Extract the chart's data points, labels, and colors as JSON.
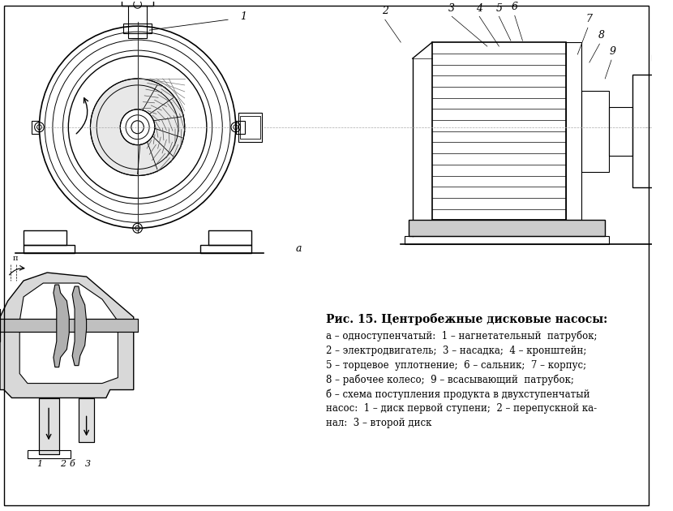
{
  "title": "Рис. 15. Центробежные дисковые насосы:",
  "background_color": "#ffffff",
  "line_color": "#000000",
  "label_a": "а",
  "label_b": "б",
  "caption_lines": [
    "а – одноступенчатый:  1 – нагнетательный  патрубок;",
    "2 – электродвигатель;  3 – насадка;  4 – кронштейн;",
    "5 – торцевое  уплотнение;  6 – сальник;  7 – корпус;",
    "8 – рабочее колесо;  9 – всасывающий  патрубок;",
    "б – схема поступления продукта в двухступенчатый",
    "насос:  1 – диск первой ступени;  2 – перепускной ка-",
    "нал:  3 – второй диск"
  ],
  "fig_width": 8.3,
  "fig_height": 6.3,
  "dpi": 100
}
